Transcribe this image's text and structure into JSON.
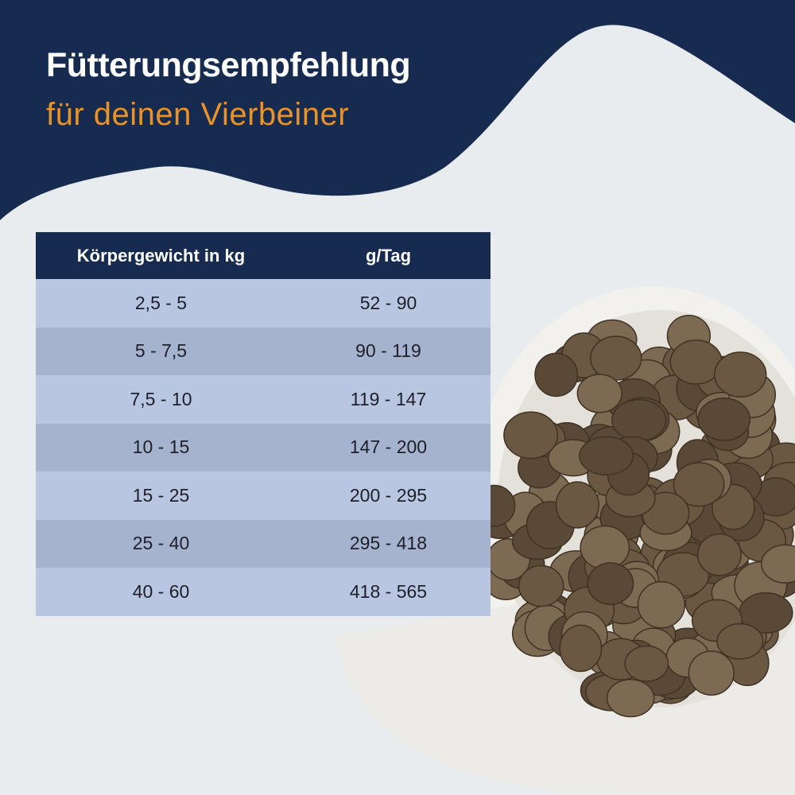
{
  "header": {
    "title": "Fütterungsempfehlung",
    "subtitle": "für deinen Vierbeiner"
  },
  "colors": {
    "navy": "#172a4f",
    "orange": "#e8922a",
    "row_light": "#b8c6e2",
    "row_dark": "#a6b3cf",
    "background": "#e8ecee"
  },
  "table": {
    "columns": [
      "Körpergewicht in kg",
      "g/Tag"
    ],
    "rows": [
      [
        "2,5 - 5",
        "52 - 90"
      ],
      [
        "5 - 7,5",
        "90 - 119"
      ],
      [
        "7,5 - 10",
        "119 - 147"
      ],
      [
        "10 - 15",
        "147 - 200"
      ],
      [
        "15 - 25",
        "200 - 295"
      ],
      [
        "25 - 40",
        "295 - 418"
      ],
      [
        "40 - 60",
        "418 - 565"
      ]
    ]
  },
  "image": {
    "subject": "bowl-of-dry-dog-food"
  }
}
